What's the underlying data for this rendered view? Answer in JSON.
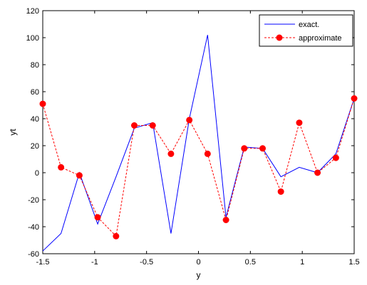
{
  "chart_data": {
    "type": "line",
    "xlabel": "y",
    "ylabel": "yt",
    "xlim": [
      -1.5,
      1.5
    ],
    "ylim": [
      -60,
      120
    ],
    "x_ticks": [
      -1.5,
      -1,
      -0.5,
      0,
      0.5,
      1,
      1.5
    ],
    "x_tick_labels": [
      "-1.5",
      "-1",
      "-0.5",
      "0",
      "0.5",
      "1",
      "1.5"
    ],
    "y_ticks": [
      -60,
      -40,
      -20,
      0,
      20,
      40,
      60,
      80,
      100,
      120
    ],
    "y_tick_labels": [
      "-60",
      "-40",
      "-20",
      "0",
      "20",
      "40",
      "60",
      "80",
      "100",
      "120"
    ],
    "grid": false,
    "legend_position": "top-right",
    "series": [
      {
        "name": "exact.",
        "color": "#0000ff",
        "line_style": "solid",
        "marker": "none",
        "x": [
          -1.5,
          -1.324,
          -1.147,
          -0.971,
          -0.794,
          -0.618,
          -0.441,
          -0.265,
          -0.088,
          0.088,
          0.265,
          0.441,
          0.618,
          0.794,
          0.971,
          1.147,
          1.324,
          1.5
        ],
        "y": [
          -58,
          -45,
          0,
          -38,
          -3,
          33,
          37,
          -45,
          40,
          102,
          -33,
          19,
          18,
          -3,
          4,
          0,
          14,
          55
        ]
      },
      {
        "name": "approximate",
        "color": "#ff0000",
        "line_style": "dashed",
        "marker": "circle",
        "x": [
          -1.5,
          -1.324,
          -1.147,
          -0.971,
          -0.794,
          -0.618,
          -0.441,
          -0.265,
          -0.088,
          0.088,
          0.265,
          0.441,
          0.618,
          0.794,
          0.971,
          1.147,
          1.324,
          1.5
        ],
        "y": [
          51,
          4,
          -2,
          -33,
          -47,
          35,
          35,
          14,
          39,
          14,
          -35,
          18,
          18,
          -14,
          37,
          0,
          11,
          55
        ]
      }
    ]
  }
}
